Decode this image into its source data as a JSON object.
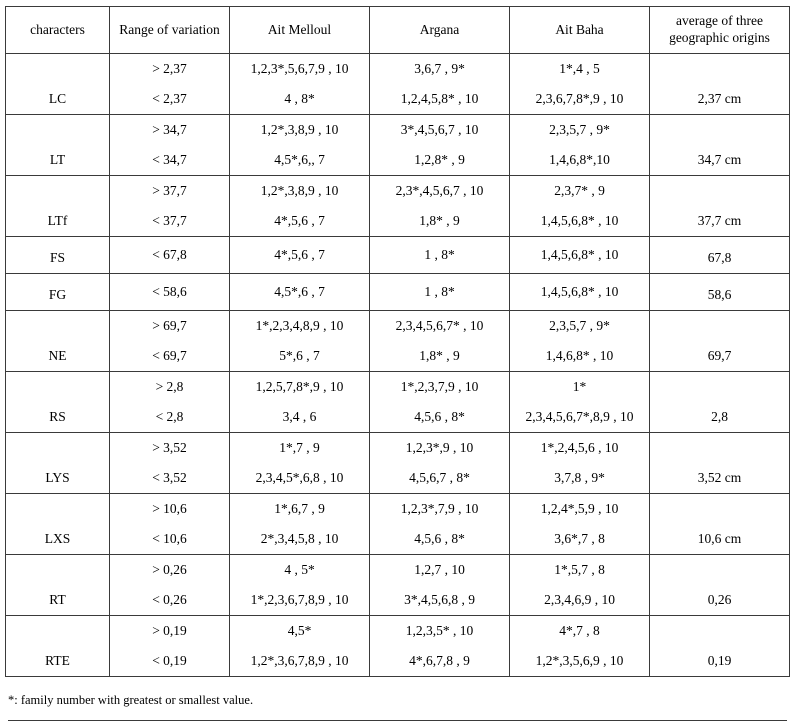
{
  "table": {
    "headers": {
      "characters": "characters",
      "range": "Range of variation",
      "ait_melloul": "Ait Melloul",
      "argana": "Argana",
      "ait_baha": "Ait Baha",
      "average": "average of three geographic origins"
    },
    "groups": [
      {
        "character": "LC",
        "average": "2,37 cm",
        "rows": [
          [
            "> 2,37",
            "1,2,3*,5,6,7,9 , 10",
            "3,6,7 , 9*",
            "1*,4 , 5"
          ],
          [
            "< 2,37",
            "4 , 8*",
            "1,2,4,5,8* , 10",
            "2,3,6,7,8*,9 , 10"
          ]
        ]
      },
      {
        "character": "LT",
        "average": "34,7 cm",
        "rows": [
          [
            "> 34,7",
            "1,2*,3,8,9 , 10",
            "3*,4,5,6,7 , 10",
            "2,3,5,7 , 9*"
          ],
          [
            "< 34,7",
            "4,5*,6,, 7",
            "1,2,8* , 9",
            "1,4,6,8*,10"
          ]
        ]
      },
      {
        "character": "LTf",
        "average": "37,7 cm",
        "rows": [
          [
            "> 37,7",
            "1,2*,3,8,9 , 10",
            "2,3*,4,5,6,7 , 10",
            "2,3,7* , 9"
          ],
          [
            "< 37,7",
            "4*,5,6 , 7",
            "1,8* , 9",
            "1,4,5,6,8* , 10"
          ]
        ]
      },
      {
        "character": "FS",
        "average": "67,8",
        "rows": [
          [
            "< 67,8",
            "4*,5,6 , 7",
            "1 , 8*",
            "1,4,5,6,8* , 10"
          ]
        ]
      },
      {
        "character": "FG",
        "average": "58,6",
        "rows": [
          [
            "< 58,6",
            "4,5*,6 , 7",
            "1 , 8*",
            "1,4,5,6,8* , 10"
          ]
        ]
      },
      {
        "character": "NE",
        "average": "69,7",
        "rows": [
          [
            "> 69,7",
            "1*,2,3,4,8,9 , 10",
            "2,3,4,5,6,7* , 10",
            "2,3,5,7 , 9*"
          ],
          [
            "< 69,7",
            "5*,6 , 7",
            "1,8* , 9",
            "1,4,6,8* , 10"
          ]
        ]
      },
      {
        "character": "RS",
        "average": "2,8",
        "rows": [
          [
            "> 2,8",
            "1,2,5,7,8*,9 , 10",
            "1*,2,3,7,9 , 10",
            "1*"
          ],
          [
            "< 2,8",
            "3,4 , 6",
            "4,5,6 , 8*",
            "2,3,4,5,6,7*,8,9 , 10"
          ]
        ]
      },
      {
        "character": "LYS",
        "average": "3,52 cm",
        "rows": [
          [
            "> 3,52",
            "1*,7 , 9",
            "1,2,3*,9 , 10",
            "1*,2,4,5,6 , 10"
          ],
          [
            "< 3,52",
            "2,3,4,5*,6,8 , 10",
            "4,5,6,7 , 8*",
            "3,7,8 , 9*"
          ]
        ]
      },
      {
        "character": "LXS",
        "average": "10,6 cm",
        "rows": [
          [
            "> 10,6",
            "1*,6,7 , 9",
            "1,2,3*,7,9 , 10",
            "1,2,4*,5,9 , 10"
          ],
          [
            "< 10,6",
            "2*,3,4,5,8 , 10",
            "4,5,6 , 8*",
            "3,6*,7 , 8"
          ]
        ]
      },
      {
        "character": "RT",
        "average": "0,26",
        "rows": [
          [
            "> 0,26",
            "4 , 5*",
            "1,2,7 , 10",
            "1*,5,7 , 8"
          ],
          [
            "< 0,26",
            "1*,2,3,6,7,8,9 , 10",
            "3*,4,5,6,8 , 9",
            "2,3,4,6,9 , 10"
          ]
        ]
      },
      {
        "character": "RTE",
        "average": "0,19",
        "rows": [
          [
            "> 0,19",
            "4,5*",
            "1,2,3,5* , 10",
            "4*,7 , 8"
          ],
          [
            "< 0,19",
            "1,2*,3,6,7,8,9 , 10",
            "4*,6,7,8 , 9",
            "1,2*,3,5,6,9 , 10"
          ]
        ]
      }
    ],
    "footnote": "*: family number with greatest or smallest value."
  }
}
